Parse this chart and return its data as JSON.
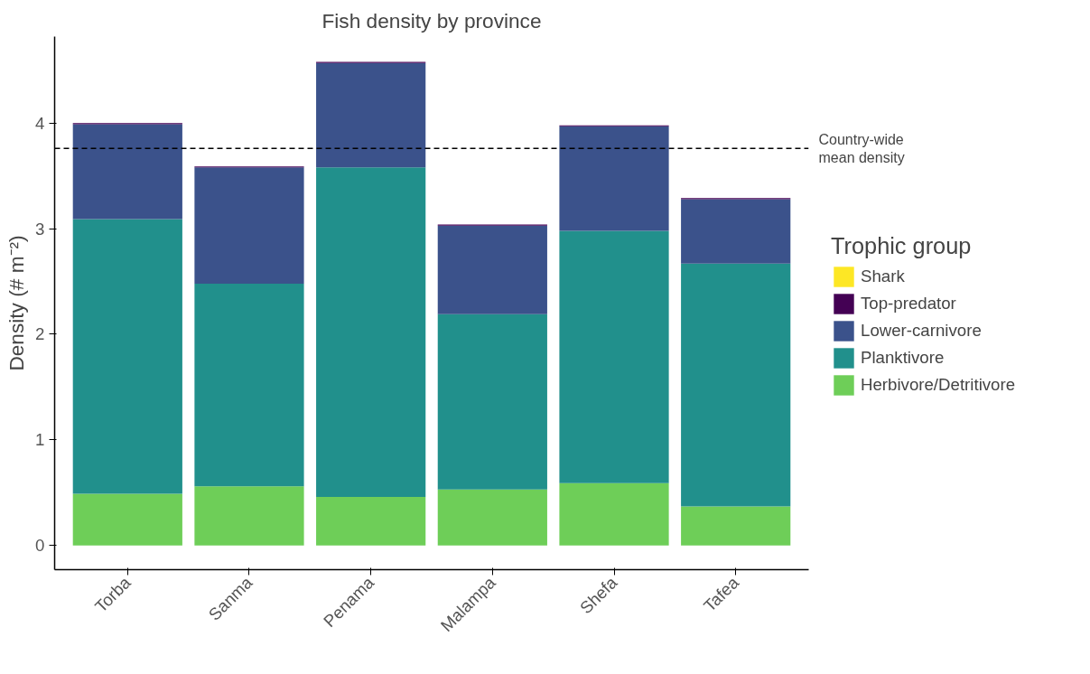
{
  "chart_data": {
    "type": "bar",
    "title": "Fish density by province",
    "ylabel": "Density (# m⁻²)",
    "stacked": true,
    "categories": [
      "Torba",
      "Sanma",
      "Penama",
      "Malampa",
      "Shefa",
      "Tafea"
    ],
    "series": [
      {
        "name": "Herbivore/Detritivore",
        "color": "#6ece58",
        "values": [
          0.49,
          0.56,
          0.46,
          0.53,
          0.59,
          0.37
        ]
      },
      {
        "name": "Planktivore",
        "color": "#21908c",
        "values": [
          2.6,
          1.92,
          3.12,
          1.66,
          2.39,
          2.3
        ]
      },
      {
        "name": "Lower-carnivore",
        "color": "#3b528b",
        "values": [
          0.9,
          1.1,
          0.99,
          0.84,
          0.99,
          0.61
        ]
      },
      {
        "name": "Top-predator",
        "color": "#440154",
        "values": [
          0.01,
          0.01,
          0.01,
          0.01,
          0.01,
          0.01
        ]
      },
      {
        "name": "Shark",
        "color": "#fde725",
        "values": [
          0,
          0,
          0,
          0,
          0,
          0
        ]
      }
    ],
    "ylim": [
      -0.23,
      4.82
    ],
    "yticks": [
      0,
      1,
      2,
      3,
      4
    ],
    "grid": false,
    "legend": "right",
    "legend_title": "Trophic group",
    "ref_lines": [
      {
        "axis": "y",
        "value": 3.76,
        "label": "Country-wide\nmean density",
        "line_style": "dashed",
        "color": "#000000"
      }
    ]
  }
}
